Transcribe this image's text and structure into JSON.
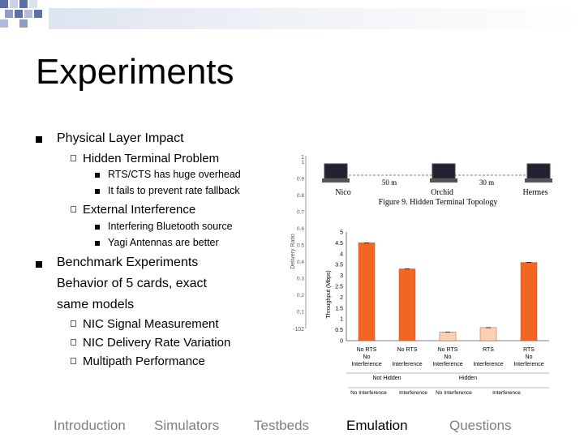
{
  "slide": {
    "title": "Experiments"
  },
  "bullets": {
    "physical": "Physical Layer Impact",
    "hidden": "Hidden Terminal Problem",
    "rts": "RTS/CTS has huge overhead",
    "fallback": "It fails to prevent rate fallback",
    "external": "External Interference",
    "bluetooth": "Interfering Bluetooth source",
    "yagi": "Yagi Antennas are better",
    "benchmark_line1": "Benchmark Experiments",
    "benchmark_line2": "Behavior of 5 cards, exact",
    "benchmark_line3": "same models",
    "nic_signal": "NIC Signal Measurement",
    "nic_delivery": "NIC Delivery Rate Variation",
    "multipath": "Multipath Performance"
  },
  "topology": {
    "node1": "Nico",
    "node2": "Orchid",
    "node3": "Hermes",
    "dist1": "50 m",
    "dist2": "30 m",
    "caption": "Figure 9. Hidden Terminal Topology"
  },
  "chart_data": {
    "type": "bar",
    "ylabel": "Throughput (Mbps)",
    "ylabel_back": "Delivery Ratio",
    "yticks": [
      "0",
      "0.5",
      "1",
      "1.5",
      "2",
      "2.5",
      "3",
      "3.5",
      "4",
      "4.5",
      "5"
    ],
    "yticks_back": [
      "0.1",
      "0.2",
      "0.3",
      "0.4",
      "0.5",
      "0.6",
      "0.7",
      "0.8",
      "0.9",
      "1"
    ],
    "ylim": [
      0,
      5
    ],
    "categories": [
      [
        "No RTS",
        "No",
        "Interference"
      ],
      [
        "No RTS",
        "",
        "Interference"
      ],
      [
        "No RTS",
        "No",
        "Interference"
      ],
      [
        "RTS",
        "",
        "Interference"
      ],
      [
        "RTS",
        "No",
        "Interference"
      ]
    ],
    "values": [
      4.5,
      3.3,
      0.4,
      0.6,
      3.6
    ],
    "colors": [
      "#f26522",
      "#f26522",
      "#fbd0b4",
      "#fbd0b4",
      "#f26522"
    ],
    "groups": [
      "Not Hidden",
      "Hidden"
    ],
    "bottom_labels": [
      "No Interference",
      "Interference",
      "No Interference",
      "Interference"
    ],
    "misc_labels": {
      "neg": "-102",
      "tl": "1"
    }
  },
  "nav": {
    "items": [
      "Introduction",
      "Simulators",
      "Testbeds",
      "Emulation",
      "Questions"
    ],
    "active": "Emulation"
  }
}
